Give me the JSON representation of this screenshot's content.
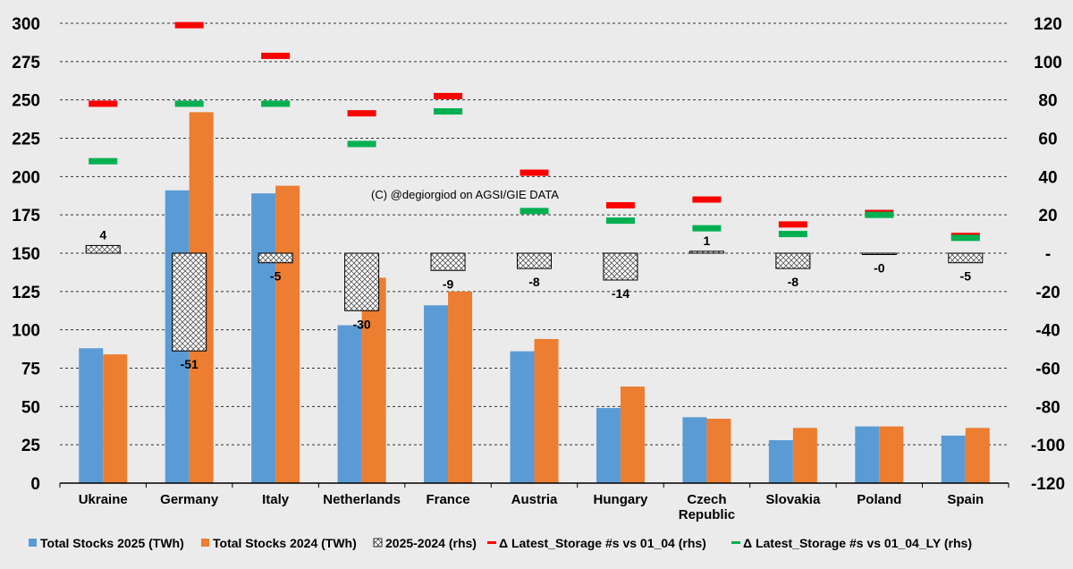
{
  "chart_data": {
    "type": "bar",
    "annotation": "(C) @degiorgiod on AGSI/GIE DATA",
    "categories": [
      "Ukraine",
      "Germany",
      "Italy",
      "Netherlands",
      "France",
      "Austria",
      "Hungary",
      "Czech Republic",
      "Slovakia",
      "Poland",
      "Spain"
    ],
    "category_lines": [
      [
        "Ukraine"
      ],
      [
        "Germany"
      ],
      [
        "Italy"
      ],
      [
        "Netherlands"
      ],
      [
        "France"
      ],
      [
        "Austria"
      ],
      [
        "Hungary"
      ],
      [
        "Czech",
        "Republic"
      ],
      [
        "Slovakia"
      ],
      [
        "Poland"
      ],
      [
        "Spain"
      ]
    ],
    "y_left": {
      "min": 0,
      "max": 300,
      "step": 25,
      "ticks": [
        "0",
        "25",
        "50",
        "75",
        "100",
        "125",
        "150",
        "175",
        "200",
        "225",
        "250",
        "275",
        "300"
      ]
    },
    "y_right": {
      "min": -120,
      "max": 120,
      "step": 20,
      "ticks": [
        "-120",
        "-100",
        "-80",
        "-60",
        "-40",
        "-20",
        "-",
        "20",
        "40",
        "60",
        "80",
        "100",
        "120"
      ]
    },
    "grid": "dashed horizontal",
    "legend_position": "bottom",
    "series": [
      {
        "name": "Total Stocks 2025 (TWh)",
        "axis": "left",
        "kind": "bar",
        "color": "#5b9bd5",
        "values": [
          88,
          191,
          189,
          103,
          116,
          86,
          49,
          43,
          28,
          37,
          31
        ]
      },
      {
        "name": "Total Stocks 2024 (TWh)",
        "axis": "left",
        "kind": "bar",
        "color": "#ed7d31",
        "values": [
          84,
          242,
          194,
          134,
          125,
          94,
          63,
          42,
          36,
          37,
          36
        ]
      },
      {
        "name": "2025-2024 (rhs)",
        "axis": "right",
        "kind": "hatched-bar",
        "values": [
          4,
          -51,
          -5,
          -30,
          -9,
          -8,
          -14,
          1,
          -8,
          -0.3,
          -5
        ],
        "labels": [
          "4",
          "-51",
          "-5",
          "-30",
          "-9",
          "-8",
          "-14",
          "1",
          "-8",
          "-0",
          "-5"
        ]
      },
      {
        "name": "Δ Latest_Storage #s vs 01_04 (rhs)",
        "axis": "right",
        "kind": "marker",
        "color": "#ff0000",
        "values": [
          78,
          119,
          103,
          73,
          82,
          42,
          25,
          28,
          15,
          21,
          9
        ]
      },
      {
        "name": "Δ Latest_Storage #s vs 01_04_LY (rhs)",
        "axis": "right",
        "kind": "marker",
        "color": "#00b050",
        "values": [
          48,
          78,
          78,
          57,
          74,
          22,
          17,
          13,
          10,
          20,
          8
        ]
      }
    ]
  }
}
